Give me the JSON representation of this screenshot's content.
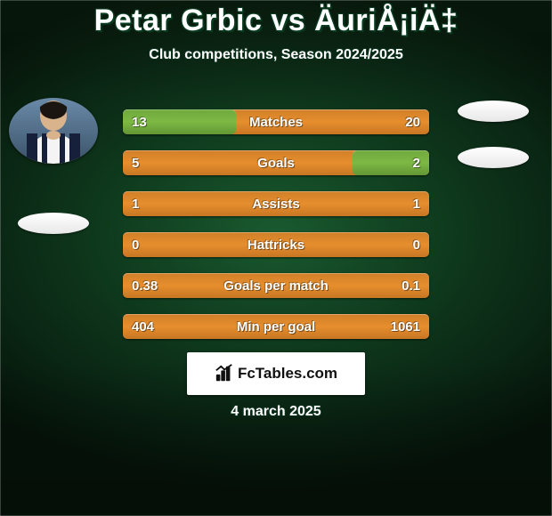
{
  "title": "Petar Grbic vs ÄuriÅ¡iÄ‡",
  "subtitle": "Club competitions, Season 2024/2025",
  "date": "4 march 2025",
  "watermark": "FcTables.com",
  "colors": {
    "bar_primary": "#e68e2e",
    "bar_fill": "#7db845",
    "text": "#ffffff"
  },
  "player_left": {
    "name": "Petar Grbic",
    "has_photo": true
  },
  "player_right": {
    "name": "ÄuriÅ¡iÄ‡",
    "has_photo": false
  },
  "stats": [
    {
      "label": "Matches",
      "left_value": "13",
      "right_value": "20",
      "left_num": 13,
      "right_num": 20,
      "left_pct": 37,
      "right_pct": 0
    },
    {
      "label": "Goals",
      "left_value": "5",
      "right_value": "2",
      "left_num": 5,
      "right_num": 2,
      "left_pct": 0,
      "right_pct": 25
    },
    {
      "label": "Assists",
      "left_value": "1",
      "right_value": "1",
      "left_num": 1,
      "right_num": 1,
      "left_pct": 0,
      "right_pct": 0
    },
    {
      "label": "Hattricks",
      "left_value": "0",
      "right_value": "0",
      "left_num": 0,
      "right_num": 0,
      "left_pct": 0,
      "right_pct": 0
    },
    {
      "label": "Goals per match",
      "left_value": "0.38",
      "right_value": "0.1",
      "left_num": 0.38,
      "right_num": 0.1,
      "left_pct": 0,
      "right_pct": 0
    },
    {
      "label": "Min per goal",
      "left_value": "404",
      "right_value": "1061",
      "left_num": 404,
      "right_num": 1061,
      "left_pct": 0,
      "right_pct": 0
    }
  ]
}
